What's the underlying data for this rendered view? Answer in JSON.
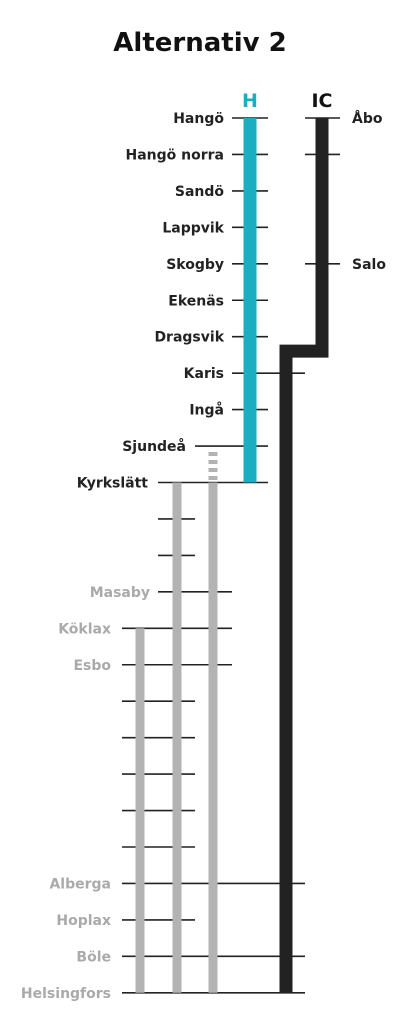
{
  "title": "Alternativ 2",
  "colors": {
    "h_line": "#1aaec0",
    "ic_line": "#222222",
    "local_line": "#b3b3b3",
    "station_dark": "#222222",
    "station_light": "#aaaaaa"
  },
  "lines": {
    "h_label": "H",
    "ic_label": "IC"
  },
  "stations": [
    {
      "name": "Hangö",
      "ic_label": "Åbo",
      "tone": "dark"
    },
    {
      "name": "Hangö norra",
      "tone": "dark"
    },
    {
      "name": "Sandö",
      "tone": "dark"
    },
    {
      "name": "Lappvik",
      "tone": "dark"
    },
    {
      "name": "Skogby",
      "ic_label": "Salo",
      "tone": "dark"
    },
    {
      "name": "Ekenäs",
      "tone": "dark"
    },
    {
      "name": "Dragsvik",
      "tone": "dark"
    },
    {
      "name": "Karis",
      "tone": "dark"
    },
    {
      "name": "Ingå",
      "tone": "dark"
    },
    {
      "name": "Sjundeå",
      "tone": "dark"
    },
    {
      "name": "Kyrkslätt",
      "tone": "dark"
    },
    {
      "name": "",
      "tone": "light"
    },
    {
      "name": "",
      "tone": "light"
    },
    {
      "name": "Masaby",
      "tone": "light"
    },
    {
      "name": "Köklax",
      "tone": "light"
    },
    {
      "name": "Esbo",
      "tone": "light"
    },
    {
      "name": "",
      "tone": "light"
    },
    {
      "name": "",
      "tone": "light"
    },
    {
      "name": "",
      "tone": "light"
    },
    {
      "name": "",
      "tone": "light"
    },
    {
      "name": "",
      "tone": "light"
    },
    {
      "name": "Alberga",
      "tone": "light"
    },
    {
      "name": "Hoplax",
      "tone": "light"
    },
    {
      "name": "Böle",
      "tone": "light"
    },
    {
      "name": "Helsingfors",
      "tone": "light"
    }
  ]
}
